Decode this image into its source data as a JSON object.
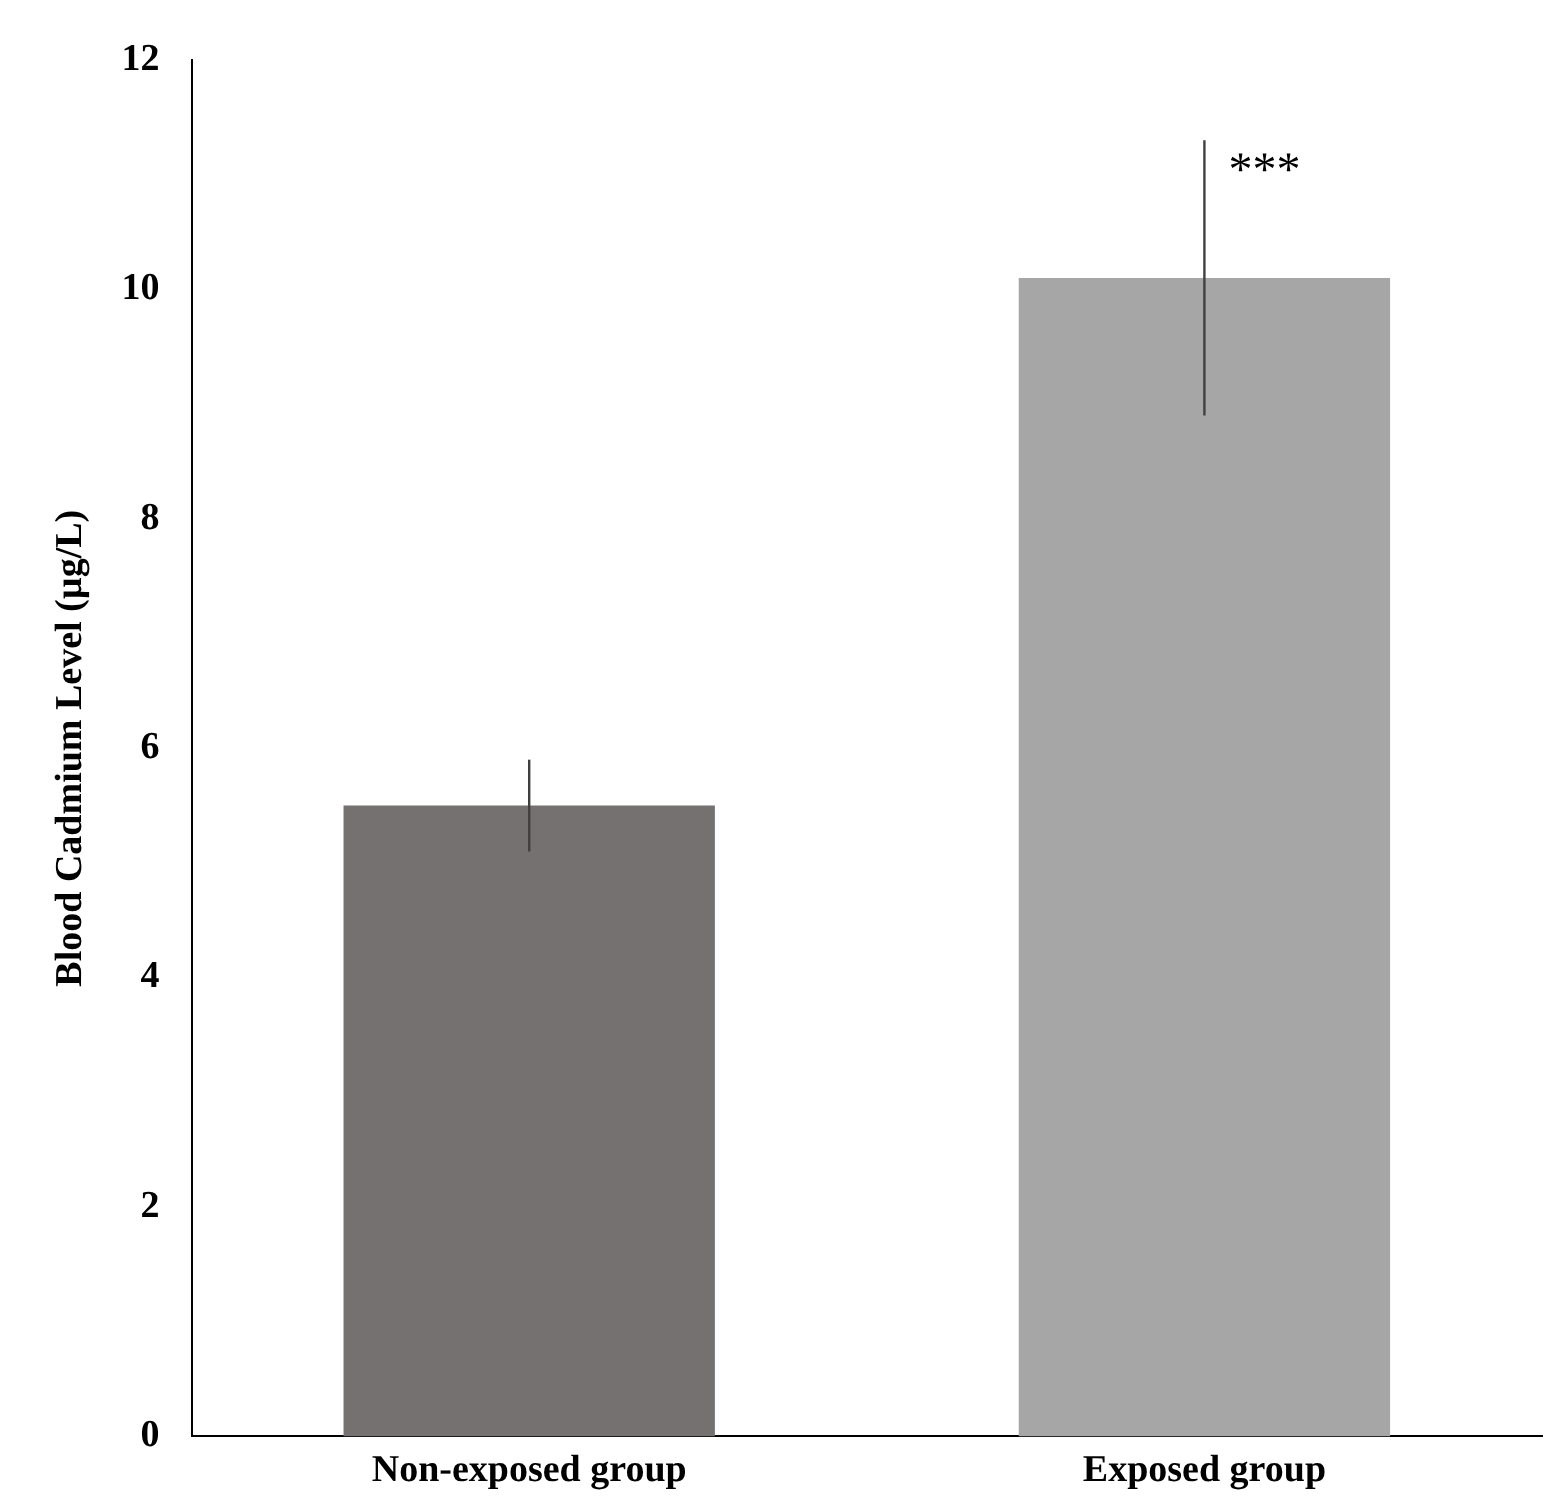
{
  "chart_data": {
    "type": "bar",
    "ylabel": "Blood Cadmium Level (µg/L)",
    "categories": [
      "Non-exposed group",
      "Exposed group"
    ],
    "values": [
      5.5,
      10.1
    ],
    "colors": [
      "#767171",
      "#a6a6a6"
    ],
    "errors": [
      0.4,
      1.2
    ],
    "ylim": [
      0,
      12
    ],
    "yticks": [
      0,
      2,
      4,
      6,
      8,
      10,
      12
    ],
    "grid": false,
    "legend": false,
    "annotations": [
      {
        "text": "***",
        "x": "Exposed group",
        "y": 11.3
      }
    ]
  }
}
